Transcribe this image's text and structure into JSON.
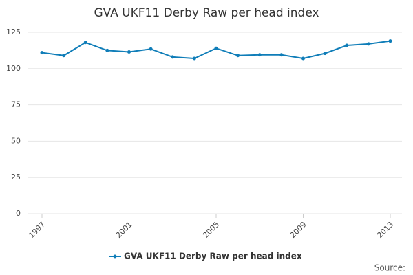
{
  "chart_data": {
    "type": "line",
    "title": "GVA UKF11 Derby Raw per head index",
    "x": [
      1997,
      1998,
      1999,
      2000,
      2001,
      2002,
      2003,
      2004,
      2005,
      2006,
      2007,
      2008,
      2009,
      2010,
      2011,
      2012,
      2013
    ],
    "series": [
      {
        "name": "GVA UKF11 Derby Raw per head index",
        "color": "#0f7db8",
        "values": [
          111,
          109,
          118,
          112.5,
          111.5,
          113.5,
          108,
          107,
          114,
          109,
          109.5,
          109.5,
          107,
          110.5,
          116,
          117,
          119
        ]
      }
    ],
    "xlim": [
      1997,
      2013
    ],
    "xticks": [
      1997,
      2001,
      2005,
      2009,
      2013
    ],
    "ylim": [
      0,
      125
    ],
    "yticks": [
      0,
      25,
      50,
      75,
      100,
      125
    ],
    "grid": true,
    "legend": "bottom",
    "source": "Source:"
  }
}
